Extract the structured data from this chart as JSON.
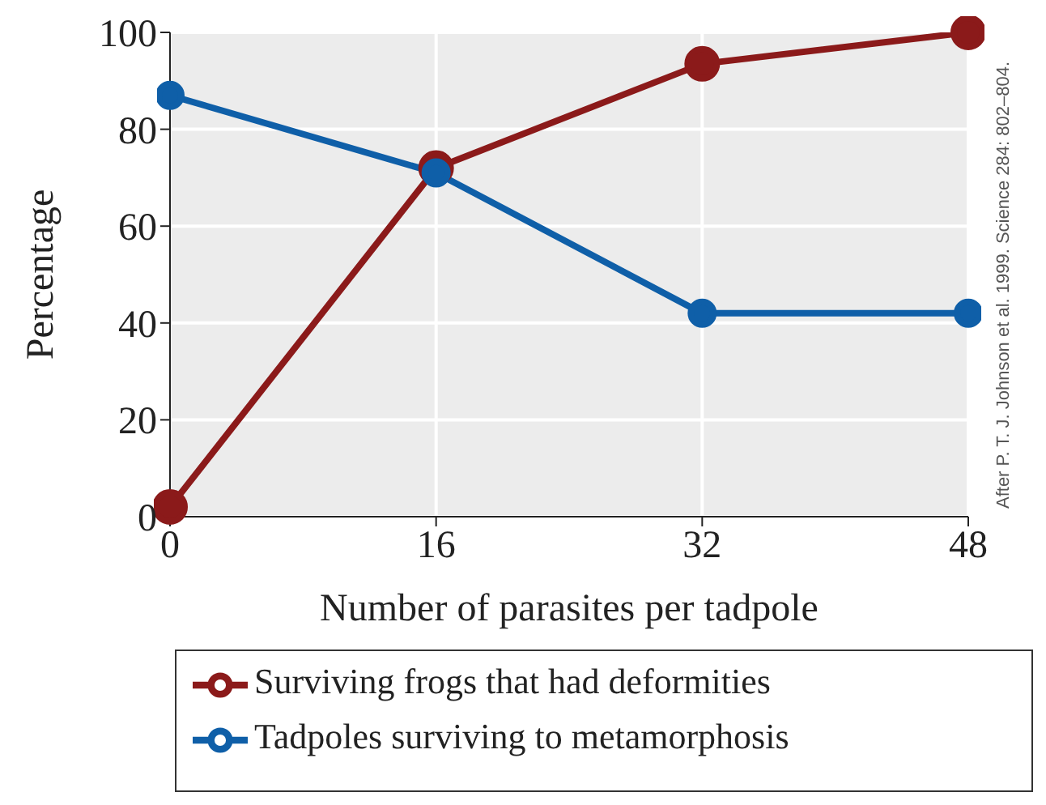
{
  "chart_data": {
    "type": "line",
    "xlabel": "Number of parasites per tadpole",
    "ylabel": "Percentage",
    "x": [
      0,
      16,
      32,
      48
    ],
    "xlim": [
      0,
      48
    ],
    "xticks": [
      0,
      16,
      32,
      48
    ],
    "ylim": [
      0,
      100
    ],
    "yticks": [
      0,
      20,
      40,
      60,
      80,
      100
    ],
    "series": [
      {
        "name": "Surviving frogs that had deformities",
        "color": "#8b1a1a",
        "values": [
          2,
          72,
          93.5,
          100
        ]
      },
      {
        "name": "Tadpoles surviving to metamorphosis",
        "color": "#0f5fa8",
        "values": [
          87,
          71,
          42,
          42
        ]
      }
    ],
    "marker": "circle",
    "grid": true,
    "legend": "bottom",
    "annotations": [
      "After P. T. J. Johnson et al. 1999. Science 284: 802–804."
    ]
  }
}
